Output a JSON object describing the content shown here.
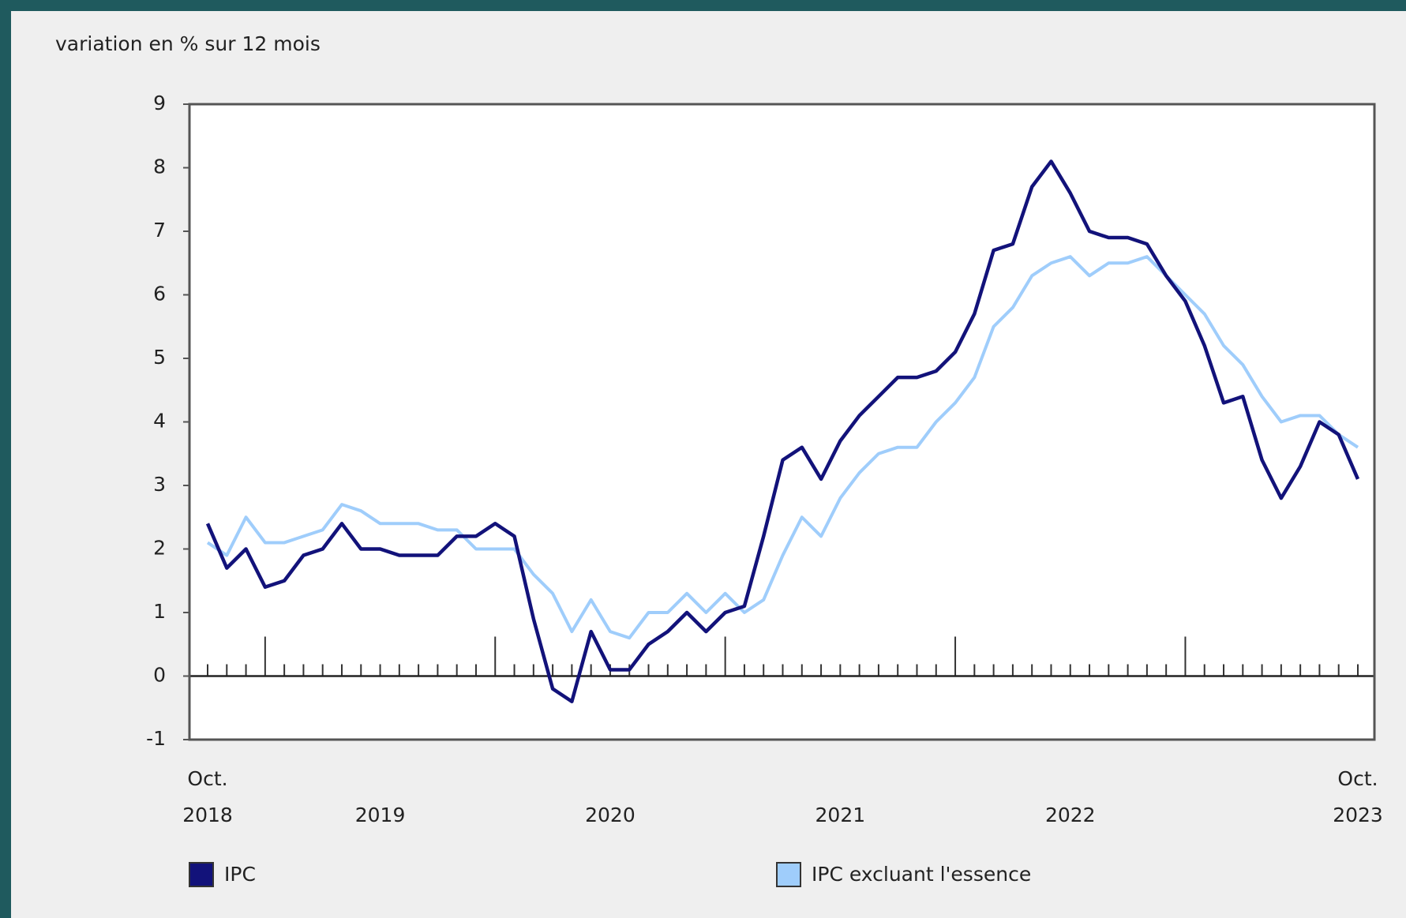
{
  "chart_data": {
    "type": "line",
    "y_axis_label": "variation en % sur 12 mois",
    "categories": [
      null,
      null,
      null,
      null,
      null,
      null,
      null,
      null,
      null,
      null,
      null,
      null,
      null,
      null,
      null,
      null,
      null,
      null,
      null,
      null,
      null,
      null,
      null,
      null,
      null,
      null,
      null,
      null,
      null,
      null,
      null,
      null,
      null,
      null,
      null,
      null,
      null,
      null,
      null,
      null,
      null,
      null,
      null,
      null,
      null,
      null,
      null,
      null,
      null,
      null,
      null,
      null,
      null,
      null,
      null,
      null,
      null,
      null,
      null,
      null,
      null
    ],
    "x_start_label": [
      "Oct.",
      "2018"
    ],
    "x_end_label": [
      "Oct.",
      "2023"
    ],
    "year_labels": [
      "2019",
      "2020",
      "2021",
      "2022"
    ],
    "ylim": [
      -1,
      9
    ],
    "yticks": [
      -1,
      0,
      1,
      2,
      3,
      4,
      5,
      6,
      7,
      8,
      9
    ],
    "legend": "bottom",
    "series": [
      {
        "name": "IPC",
        "color": "#12127a",
        "values": [
          2.4,
          1.7,
          2.0,
          1.4,
          1.5,
          1.9,
          2.0,
          2.4,
          2.0,
          2.0,
          1.9,
          1.9,
          1.9,
          2.2,
          2.2,
          2.4,
          2.2,
          0.9,
          -0.2,
          -0.4,
          0.7,
          0.1,
          0.1,
          0.5,
          0.7,
          1.0,
          0.7,
          1.0,
          1.1,
          2.2,
          3.4,
          3.6,
          3.1,
          3.7,
          4.1,
          4.4,
          4.7,
          4.7,
          4.8,
          5.1,
          5.7,
          6.7,
          6.8,
          7.7,
          8.1,
          7.6,
          7.0,
          6.9,
          6.9,
          6.8,
          6.3,
          5.9,
          5.2,
          4.3,
          4.4,
          3.4,
          2.8,
          3.3,
          4.0,
          3.8,
          3.1
        ]
      },
      {
        "name": "IPC excluant l'essence",
        "color": "#9fcdfb",
        "values": [
          2.1,
          1.9,
          2.5,
          2.1,
          2.1,
          2.2,
          2.3,
          2.7,
          2.6,
          2.4,
          2.4,
          2.4,
          2.3,
          2.3,
          2.0,
          2.0,
          2.0,
          1.6,
          1.3,
          0.7,
          1.2,
          0.7,
          0.6,
          1.0,
          1.0,
          1.3,
          1.0,
          1.3,
          1.0,
          1.2,
          1.9,
          2.5,
          2.2,
          2.8,
          3.2,
          3.5,
          3.6,
          3.6,
          4.0,
          4.3,
          4.7,
          5.5,
          5.8,
          6.3,
          6.5,
          6.6,
          6.3,
          6.5,
          6.5,
          6.6,
          6.3,
          6.0,
          5.7,
          5.2,
          4.9,
          4.4,
          4.0,
          4.1,
          4.1,
          3.8,
          3.6
        ]
      }
    ]
  }
}
